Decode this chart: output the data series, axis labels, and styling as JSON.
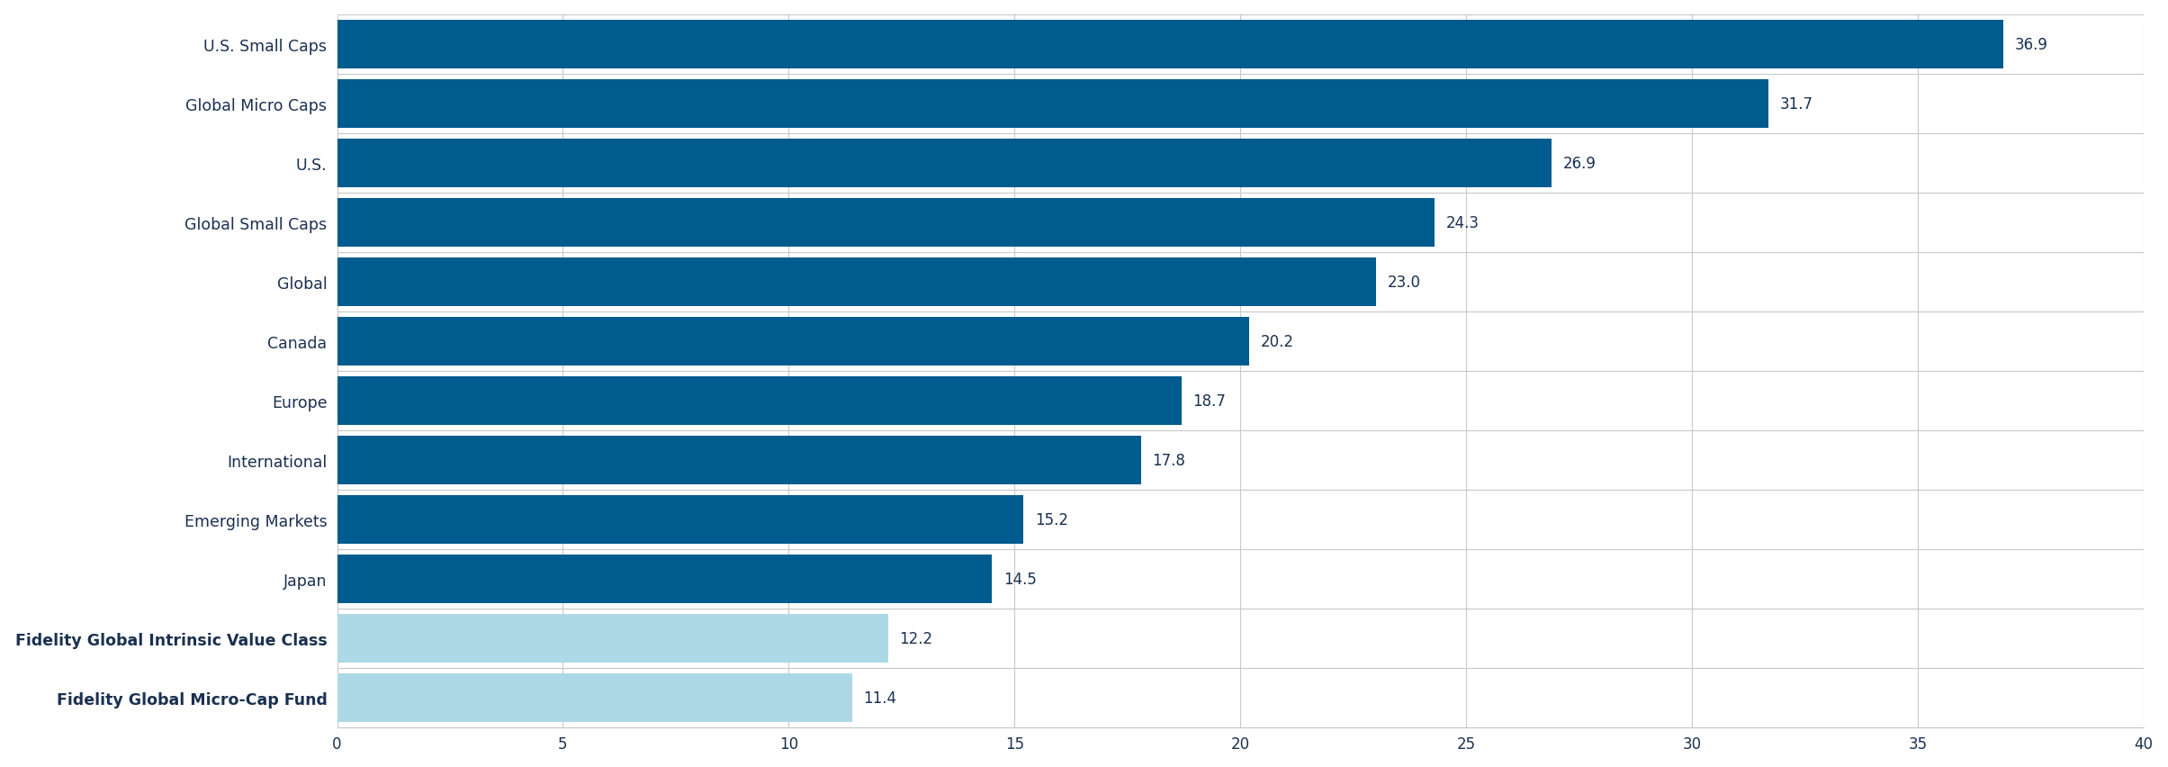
{
  "categories": [
    "Fidelity Global Micro-Cap Fund",
    "Fidelity Global Intrinsic Value Class",
    "Japan",
    "Emerging Markets",
    "International",
    "Europe",
    "Canada",
    "Global",
    "Global Small Caps",
    "U.S.",
    "Global Micro Caps",
    "U.S. Small Caps"
  ],
  "values": [
    11.4,
    12.2,
    14.5,
    15.2,
    17.8,
    18.7,
    20.2,
    23.0,
    24.3,
    26.9,
    31.7,
    36.9
  ],
  "bar_colors": [
    "#add8e6",
    "#add8e6",
    "#005b8e",
    "#005b8e",
    "#005b8e",
    "#005b8e",
    "#005b8e",
    "#005b8e",
    "#005b8e",
    "#005b8e",
    "#005b8e",
    "#005b8e"
  ],
  "bold_indices": [
    0,
    1
  ],
  "xlim": [
    0,
    40
  ],
  "xticks": [
    0,
    5,
    10,
    15,
    20,
    25,
    30,
    35,
    40
  ],
  "background_color": "#ffffff",
  "grid_color": "#c8c8c8",
  "label_color": "#1a3050",
  "value_label_color": "#1a3050",
  "bar_height": 0.82,
  "value_fontsize": 12,
  "category_fontsize": 12.5,
  "tick_fontsize": 12
}
